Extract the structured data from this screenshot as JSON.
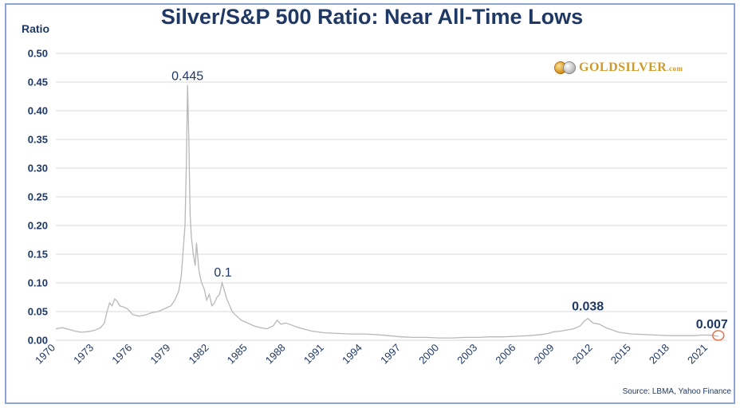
{
  "chart_data": {
    "type": "line",
    "title": "Silver/S&P 500 Ratio: Near All-Time Lows",
    "ylabel": "Ratio",
    "xlabel": "",
    "ylim": [
      0,
      0.5
    ],
    "xlim": [
      1970,
      2022.5
    ],
    "yticks": [
      "0.00",
      "0.05",
      "0.10",
      "0.15",
      "0.20",
      "0.25",
      "0.30",
      "0.35",
      "0.40",
      "0.45",
      "0.50"
    ],
    "xticks": [
      "1970",
      "1973",
      "1976",
      "1979",
      "1982",
      "1985",
      "1988",
      "1991",
      "1994",
      "1997",
      "2000",
      "2003",
      "2006",
      "2009",
      "2012",
      "2015",
      "2018",
      "2021"
    ],
    "grid": "horizontal",
    "line_color": "#b8b8b8",
    "series": [
      {
        "x": [
          1970,
          1970.5,
          1971,
          1971.5,
          1972,
          1972.5,
          1973,
          1973.5,
          1973.8,
          1974.0,
          1974.2,
          1974.4,
          1974.6,
          1974.8,
          1975.0,
          1975.3,
          1975.6,
          1976,
          1976.5,
          1977,
          1977.5,
          1978,
          1978.5,
          1979,
          1979.3,
          1979.6,
          1979.8,
          1980.0,
          1980.1,
          1980.2,
          1980.3,
          1980.4,
          1980.5,
          1980.6,
          1980.75,
          1980.9,
          1981.0,
          1981.2,
          1981.4,
          1981.6,
          1981.8,
          1982.0,
          1982.2,
          1982.4,
          1982.6,
          1982.8,
          1983.0,
          1983.2,
          1983.4,
          1983.6,
          1983.8,
          1984.0,
          1984.5,
          1985,
          1985.5,
          1986,
          1986.5,
          1987,
          1987.3,
          1987.6,
          1988,
          1988.5,
          1989,
          1990,
          1991,
          1992,
          1993,
          1994,
          1995,
          1996,
          1997,
          1998,
          1999,
          2000,
          2001,
          2002,
          2003,
          2004,
          2005,
          2006,
          2007,
          2008,
          2008.5,
          2009,
          2009.5,
          2010,
          2010.5,
          2011,
          2011.3,
          2011.6,
          2012,
          2012.5,
          2013,
          2013.5,
          2014,
          2015,
          2016,
          2017,
          2018,
          2019,
          2020,
          2020.5,
          2021,
          2021.5,
          2021.8
        ],
        "y": [
          0.02,
          0.022,
          0.019,
          0.016,
          0.014,
          0.015,
          0.017,
          0.022,
          0.03,
          0.05,
          0.065,
          0.06,
          0.072,
          0.068,
          0.06,
          0.058,
          0.055,
          0.045,
          0.042,
          0.044,
          0.048,
          0.05,
          0.055,
          0.06,
          0.07,
          0.085,
          0.11,
          0.17,
          0.2,
          0.3,
          0.445,
          0.35,
          0.22,
          0.18,
          0.15,
          0.13,
          0.17,
          0.12,
          0.1,
          0.09,
          0.07,
          0.08,
          0.06,
          0.065,
          0.075,
          0.08,
          0.1,
          0.085,
          0.07,
          0.06,
          0.05,
          0.045,
          0.035,
          0.03,
          0.025,
          0.022,
          0.02,
          0.025,
          0.035,
          0.028,
          0.03,
          0.026,
          0.022,
          0.016,
          0.013,
          0.012,
          0.011,
          0.011,
          0.01,
          0.008,
          0.006,
          0.005,
          0.005,
          0.004,
          0.004,
          0.005,
          0.005,
          0.006,
          0.006,
          0.007,
          0.008,
          0.01,
          0.012,
          0.015,
          0.016,
          0.018,
          0.02,
          0.025,
          0.033,
          0.038,
          0.03,
          0.028,
          0.022,
          0.018,
          0.014,
          0.011,
          0.01,
          0.009,
          0.008,
          0.008,
          0.008,
          0.009,
          0.009,
          0.008,
          0.007
        ]
      }
    ],
    "annotations": [
      {
        "label": "0.445",
        "x": 1980.3,
        "y": 0.445
      },
      {
        "label": "0.1",
        "x": 1983.0,
        "y": 0.1
      },
      {
        "label": "0.038",
        "x": 2011.6,
        "y": 0.038
      },
      {
        "label": "0.007",
        "x": 2021.8,
        "y": 0.007
      }
    ],
    "highlight": {
      "x": 2021.8,
      "y": 0.007,
      "color": "#e8734a"
    }
  },
  "logo": {
    "text": "GOLDSILVER",
    "suffix": ".com"
  },
  "source": "Source: LBMA, Yahoo Finance"
}
